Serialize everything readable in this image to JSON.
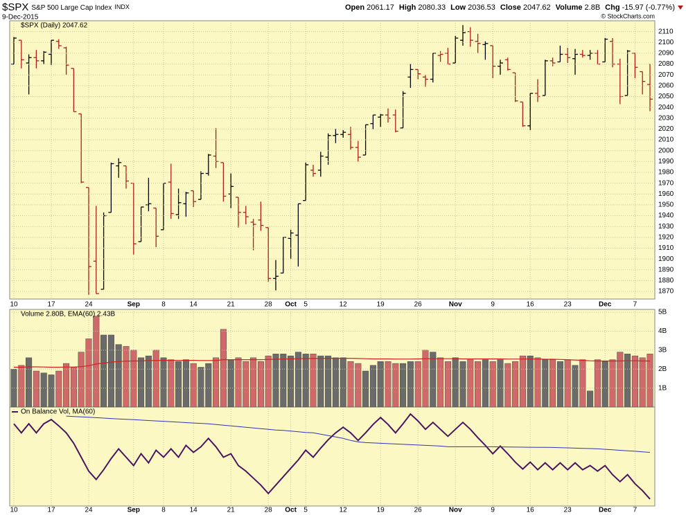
{
  "credit": "© StockCharts.com",
  "chart_data": [
    {
      "type": "ohlc",
      "title": "$SPX",
      "subtitle": "S&P 500 Large Cap Index",
      "exchange": "INDX",
      "date": "9-Dec-2015",
      "legend": "$SPX (Daily) 2047.62",
      "quote_labels": [
        "Open",
        "High",
        "Low",
        "Close",
        "Volume",
        "Chg"
      ],
      "volume_label": "2.8B",
      "change_label": "-15.97 (-0.77%)",
      "up_color": "#000000",
      "down_color": "#b01c1c",
      "grid": true,
      "xticks": [
        {
          "value": 0,
          "label": "10"
        },
        {
          "value": 5,
          "label": "17"
        },
        {
          "value": 10,
          "label": "24"
        },
        {
          "value": 16,
          "label": "Sep"
        },
        {
          "value": 20,
          "label": "8"
        },
        {
          "value": 24,
          "label": "14"
        },
        {
          "value": 29,
          "label": "21"
        },
        {
          "value": 34,
          "label": "28"
        },
        {
          "value": 37,
          "label": "Oct"
        },
        {
          "value": 39,
          "label": "5"
        },
        {
          "value": 44,
          "label": "12"
        },
        {
          "value": 49,
          "label": "19"
        },
        {
          "value": 54,
          "label": "26"
        },
        {
          "value": 59,
          "label": "Nov"
        },
        {
          "value": 64,
          "label": "9"
        },
        {
          "value": 69,
          "label": "16"
        },
        {
          "value": 74,
          "label": "23"
        },
        {
          "value": 79,
          "label": "Dec"
        },
        {
          "value": 83,
          "label": "7"
        }
      ],
      "ylim": [
        1863,
        2120
      ],
      "yticks": [
        1870,
        1880,
        1890,
        1900,
        1910,
        1920,
        1930,
        1940,
        1950,
        1960,
        1970,
        1980,
        1990,
        2000,
        2010,
        2020,
        2030,
        2040,
        2050,
        2060,
        2070,
        2080,
        2090,
        2100,
        2110
      ],
      "open": [
        2080,
        2102,
        2081,
        2086,
        2083,
        2089,
        2101,
        2095,
        2076,
        2034,
        1966,
        1898,
        1872,
        1943,
        1986,
        1986,
        1970,
        1916,
        1950,
        1947,
        1927,
        1971,
        1941,
        1951,
        1963,
        1955,
        1979,
        1995,
        1989,
        1960,
        1957,
        1943,
        1934,
        1936,
        1929,
        1882,
        1887,
        1919,
        1922,
        1954,
        1982,
        1982,
        1994,
        2014,
        2015,
        2015,
        2003,
        1996,
        2025,
        2031,
        2033,
        2033,
        2021,
        2068,
        2075,
        2068,
        2066,
        2088,
        2090,
        2081,
        2102,
        2110,
        2101,
        2098,
        2097,
        2078,
        2084,
        2072,
        2045,
        2023,
        2053,
        2051,
        2083,
        2082,
        2089,
        2085,
        2089,
        2088,
        2090,
        2082,
        2101,
        2080,
        2051,
        2090,
        2073,
        2061.17
      ],
      "high": [
        2105,
        2102,
        2089,
        2093,
        2092,
        2102,
        2103,
        2096,
        2076,
        2034,
        1966,
        1949,
        1943,
        1989,
        1993,
        1986,
        1970,
        1948,
        1975,
        1947,
        1970,
        1988,
        1965,
        1962,
        1963,
        1981,
        1997,
        2021,
        1989,
        1979,
        1957,
        1949,
        1937,
        1953,
        1929,
        1899,
        1920,
        1927,
        1951,
        1989,
        1987,
        1999,
        2016,
        2020,
        2019,
        2022,
        2009,
        2024,
        2033,
        2034,
        2039,
        2038,
        2055,
        2080,
        2075,
        2070,
        2090,
        2092,
        2095,
        2106,
        2116,
        2114,
        2108,
        2101,
        2097,
        2084,
        2086,
        2072,
        2045,
        2053,
        2066,
        2084,
        2086,
        2097,
        2095,
        2094,
        2093,
        2093,
        2093,
        2104,
        2104,
        2085,
        2093,
        2090,
        2073,
        2080.33
      ],
      "low": [
        2080,
        2076,
        2052,
        2076,
        2080,
        2079,
        2094,
        2070,
        2036,
        1970,
        1867,
        1868,
        1872,
        1943,
        1975,
        1965,
        1904,
        1916,
        1944,
        1911,
        1927,
        1937,
        1937,
        1939,
        1948,
        1955,
        1977,
        1984,
        1953,
        1947,
        1929,
        1932,
        1908,
        1926,
        1879,
        1871,
        1887,
        1900,
        1893,
        1954,
        1976,
        1976,
        1987,
        2007,
        2012,
        2001,
        1990,
        1996,
        2020,
        2022,
        2026,
        2017,
        2021,
        2058,
        2066,
        2059,
        2063,
        2082,
        2080,
        2081,
        2097,
        2096,
        2090,
        2084,
        2067,
        2070,
        2074,
        2045,
        2022,
        2019,
        2045,
        2051,
        2078,
        2082,
        2081,
        2070,
        2086,
        2084,
        2080,
        2082,
        2077,
        2043,
        2051,
        2067,
        2052,
        2036.53
      ],
      "close": [
        2104,
        2084,
        2086,
        2083,
        2091,
        2102,
        2097,
        2079,
        2036,
        1971,
        1893,
        1868,
        1940,
        1988,
        1989,
        1972,
        1914,
        1948,
        1951,
        1921,
        1970,
        1942,
        1952,
        1961,
        1953,
        1979,
        1996,
        1990,
        1958,
        1967,
        1943,
        1939,
        1932,
        1931,
        1882,
        1884,
        1920,
        1924,
        1951,
        1987,
        1979,
        1995,
        2014,
        2015,
        2017,
        2003,
        1994,
        2024,
        2033,
        2033,
        2030,
        2018,
        2053,
        2075,
        2071,
        2066,
        2090,
        2089,
        2080,
        2104,
        2109,
        2102,
        2099,
        2099,
        2078,
        2081,
        2075,
        2046,
        2023,
        2053,
        2050,
        2083,
        2081,
        2089,
        2086,
        2089,
        2088,
        2090,
        2080,
        2103,
        2080,
        2050,
        2092,
        2077,
        2064,
        2047.62
      ]
    },
    {
      "type": "bar",
      "legend": "Volume 2.80B, EMA(60) 2.43B",
      "up_color": "#6b6b6b",
      "down_color": "#d06a6a",
      "grid": true,
      "ylim": [
        0,
        5.15
      ],
      "yticks": [
        {
          "value": 1,
          "label": "1B"
        },
        {
          "value": 2,
          "label": "2B"
        },
        {
          "value": 3,
          "label": "3B"
        },
        {
          "value": 4,
          "label": "4B"
        },
        {
          "value": 5,
          "label": "5B"
        }
      ],
      "values": [
        2.0,
        2.2,
        2.6,
        1.9,
        1.8,
        1.7,
        1.9,
        2.3,
        2.1,
        2.9,
        3.6,
        4.8,
        3.8,
        3.8,
        3.3,
        3.2,
        3.0,
        2.6,
        2.7,
        3.0,
        2.6,
        2.5,
        2.4,
        2.5,
        2.3,
        2.1,
        2.3,
        2.6,
        4.1,
        2.5,
        2.6,
        2.4,
        2.6,
        2.4,
        2.7,
        2.8,
        2.8,
        2.7,
        2.9,
        2.8,
        2.8,
        2.7,
        2.7,
        2.6,
        2.6,
        2.4,
        2.3,
        1.9,
        2.2,
        2.4,
        2.4,
        2.3,
        2.3,
        2.4,
        2.4,
        3.0,
        2.9,
        2.6,
        2.4,
        2.6,
        2.4,
        2.5,
        2.4,
        2.5,
        2.4,
        2.5,
        2.3,
        2.4,
        2.7,
        2.7,
        2.6,
        2.5,
        2.5,
        2.4,
        2.5,
        2.2,
        2.5,
        0.85,
        2.5,
        2.4,
        2.5,
        2.9,
        2.8,
        2.7,
        2.6,
        2.8
      ],
      "series": [
        {
          "name": "EMA(60)",
          "color": "#d42020",
          "values": [
            2.1,
            2.1,
            2.12,
            2.12,
            2.11,
            2.1,
            2.1,
            2.11,
            2.11,
            2.13,
            2.18,
            2.27,
            2.32,
            2.37,
            2.4,
            2.42,
            2.43,
            2.43,
            2.45,
            2.45,
            2.46,
            2.46,
            2.46,
            2.46,
            2.46,
            2.45,
            2.45,
            2.45,
            2.5,
            2.5,
            2.5,
            2.5,
            2.5,
            2.5,
            2.51,
            2.52,
            2.53,
            2.54,
            2.55,
            2.56,
            2.56,
            2.57,
            2.57,
            2.57,
            2.57,
            2.57,
            2.56,
            2.55,
            2.54,
            2.54,
            2.54,
            2.53,
            2.53,
            2.53,
            2.54,
            2.55,
            2.55,
            2.55,
            2.55,
            2.55,
            2.54,
            2.54,
            2.54,
            2.54,
            2.54,
            2.54,
            2.53,
            2.53,
            2.53,
            2.53,
            2.53,
            2.52,
            2.52,
            2.51,
            2.5,
            2.48,
            2.46,
            2.44,
            2.43,
            2.43,
            2.43,
            2.43,
            2.44,
            2.44,
            2.43,
            2.43
          ]
        }
      ]
    },
    {
      "type": "line",
      "legend": "On Balance Vol, MA(60)",
      "ylim": [
        0,
        142
      ],
      "series": [
        {
          "name": "On Balance Vol",
          "color": "#4a1460",
          "values": [
            118,
            105,
            118,
            105,
            118,
            124,
            115,
            105,
            90,
            70,
            50,
            38,
            52,
            68,
            82,
            70,
            58,
            75,
            62,
            80,
            70,
            82,
            70,
            87,
            77,
            85,
            97,
            85,
            70,
            75,
            58,
            50,
            40,
            30,
            18,
            30,
            42,
            54,
            66,
            80,
            70,
            83,
            95,
            105,
            113,
            105,
            94,
            105,
            117,
            127,
            117,
            105,
            118,
            132,
            122,
            110,
            120,
            110,
            100,
            110,
            120,
            110,
            98,
            87,
            75,
            86,
            75,
            63,
            53,
            63,
            52,
            62,
            52,
            62,
            52,
            62,
            52,
            58,
            50,
            58,
            45,
            35,
            45,
            32,
            22,
            10
          ]
        },
        {
          "name": "MA(60)",
          "color": "#3030c0",
          "values": [
            null,
            null,
            null,
            null,
            null,
            null,
            null,
            129,
            128.4,
            127.8,
            127.3,
            126.7,
            126.1,
            125.5,
            124.9,
            124.4,
            123.8,
            123.2,
            122.6,
            122,
            121.5,
            120.9,
            120.3,
            119.7,
            119.1,
            118.6,
            118,
            117,
            116,
            115,
            114,
            113,
            112,
            111,
            110,
            109,
            108.5,
            107.5,
            106.5,
            105.5,
            105,
            103,
            101,
            99,
            97,
            94,
            92,
            91,
            90.5,
            90,
            89.5,
            89,
            88.5,
            88,
            87.5,
            87,
            86.5,
            86,
            85,
            85,
            85,
            85,
            85,
            85,
            85,
            84.8,
            84.6,
            84.5,
            84.4,
            84.3,
            84.2,
            84.1,
            84,
            83.7,
            83.4,
            83,
            82.7,
            82.4,
            82,
            81.3,
            80.6,
            79.9,
            79.2,
            78.5,
            77.8,
            77
          ]
        }
      ]
    }
  ]
}
